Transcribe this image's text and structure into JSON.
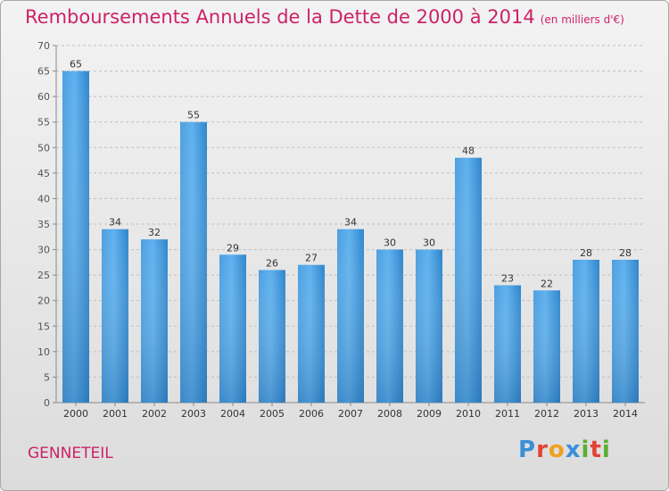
{
  "page": {
    "title": "Remboursements Annuels de la Dette de 2000 à 2014",
    "subtitle": "(en milliers d'€)",
    "brand": "GENNETEIL",
    "logo_text": "Proxiti",
    "logo_colors": [
      "#3a8fd8",
      "#e34234",
      "#f0a020",
      "#3a8fd8",
      "#58b030",
      "#e34234",
      "#58b030"
    ]
  },
  "chart_data": {
    "type": "bar",
    "categories": [
      "2000",
      "2001",
      "2002",
      "2003",
      "2004",
      "2005",
      "2006",
      "2007",
      "2008",
      "2009",
      "2010",
      "2011",
      "2012",
      "2013",
      "2014"
    ],
    "values": [
      65,
      34,
      32,
      55,
      29,
      26,
      27,
      34,
      30,
      30,
      48,
      23,
      22,
      28,
      28
    ],
    "ylim": [
      0,
      70
    ],
    "yticks": [
      0,
      5,
      10,
      15,
      20,
      25,
      30,
      35,
      40,
      45,
      50,
      55,
      60,
      65,
      70
    ],
    "grid": "horizontal-dashed",
    "bar_color_light": "#5aacea",
    "bar_color_dark": "#2a79bd"
  }
}
